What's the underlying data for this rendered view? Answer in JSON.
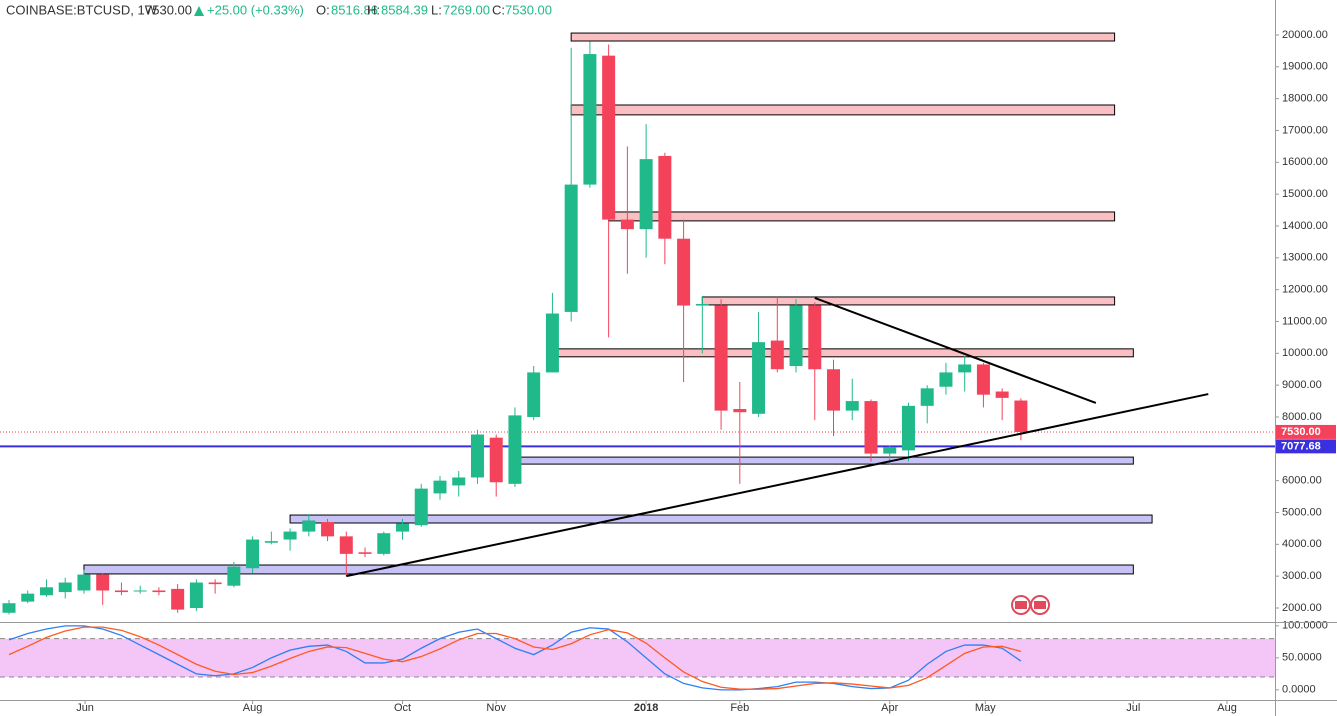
{
  "header": {
    "symbol": "COINBASE:BTCUSD, 1W",
    "price": "7530.00",
    "change": "+25.00 (+0.33%)",
    "o_label": "O:",
    "o": "8516.86",
    "h_label": "H:",
    "h": "8584.39",
    "l_label": "L:",
    "l": "7269.00",
    "c_label": "C:",
    "c": "7530.00"
  },
  "chart_data": [
    {
      "type": "candlestick",
      "categories": [
        null,
        null,
        null,
        null,
        null,
        null,
        null,
        null,
        null,
        null,
        null,
        null,
        null,
        null,
        null,
        null,
        null,
        null,
        null,
        null,
        null,
        null,
        null,
        null,
        null,
        null,
        null,
        null,
        null,
        null,
        null,
        null,
        null,
        null,
        null,
        null,
        null,
        null,
        null,
        null,
        null,
        null,
        null,
        null,
        null,
        null,
        null,
        null,
        null,
        null,
        null,
        null,
        null,
        null,
        null
      ],
      "open": [
        1850,
        2200,
        2400,
        2500,
        2550,
        3050,
        2550,
        2550,
        2550,
        2600,
        2000,
        2800,
        2700,
        3250,
        4050,
        4150,
        4400,
        4700,
        4250,
        3750,
        3700,
        4400,
        4600,
        5600,
        5850,
        6100,
        7350,
        5900,
        8000,
        9400,
        11300,
        15300,
        19350,
        14200,
        13900,
        16200,
        13600,
        11500,
        11500,
        8250,
        8100,
        10400,
        9600,
        11500,
        9500,
        8200,
        8500,
        6850,
        6950,
        8350,
        8950,
        9400,
        9650,
        8800,
        8516.86
      ],
      "high": [
        2250,
        2550,
        2900,
        2950,
        3200,
        3100,
        2800,
        2700,
        2650,
        2750,
        2900,
        2900,
        3450,
        4250,
        4400,
        4500,
        4950,
        4800,
        4400,
        3900,
        4400,
        4800,
        5900,
        6150,
        6300,
        7600,
        7450,
        8300,
        9600,
        11900,
        19600,
        19800,
        19700,
        16500,
        17200,
        16300,
        14200,
        11800,
        11700,
        9100,
        11300,
        11800,
        11700,
        11600,
        9800,
        9200,
        8550,
        7100,
        8450,
        9000,
        9700,
        9900,
        9700,
        8900,
        8584.39
      ],
      "low": [
        1800,
        2150,
        2350,
        2300,
        2450,
        2100,
        2400,
        2450,
        2400,
        1850,
        1900,
        2450,
        2650,
        3100,
        4000,
        3800,
        4250,
        4100,
        3000,
        3600,
        3650,
        4150,
        4550,
        5400,
        5500,
        5900,
        5500,
        5800,
        7900,
        9400,
        11000,
        15200,
        10500,
        12500,
        13000,
        12800,
        9100,
        10000,
        7600,
        5900,
        8000,
        9400,
        9400,
        7900,
        7400,
        7900,
        6600,
        6500,
        6600,
        7800,
        8700,
        8800,
        8300,
        7900,
        7269
      ],
      "close": [
        2150,
        2450,
        2650,
        2800,
        3050,
        2550,
        2500,
        2550,
        2500,
        1950,
        2800,
        2750,
        3300,
        4150,
        4100,
        4400,
        4750,
        4250,
        3700,
        3700,
        4350,
        4650,
        5750,
        6000,
        6100,
        7450,
        5950,
        8050,
        9400,
        11250,
        15300,
        19400,
        14200,
        13900,
        16100,
        13600,
        11500,
        11550,
        8200,
        8150,
        10350,
        9500,
        11500,
        9500,
        8200,
        8500,
        6850,
        7050,
        8350,
        8900,
        9400,
        9650,
        8700,
        8600,
        7530
      ],
      "up_color": "#20b98a",
      "down_color": "#f5425b",
      "xlim": [
        -0.48,
        67.56
      ],
      "xticks": [
        {
          "value": 4.06,
          "label": "Jun"
        },
        {
          "value": 13.0,
          "label": "Aug"
        },
        {
          "value": 21.0,
          "label": "Oct"
        },
        {
          "value": 26.0,
          "label": "Nov"
        },
        {
          "value": 34.0,
          "label": "2018"
        },
        {
          "value": 39.0,
          "label": "Feb"
        },
        {
          "value": 47.0,
          "label": "Apr"
        },
        {
          "value": 52.1,
          "label": "May"
        },
        {
          "value": 60.0,
          "label": "Jul"
        },
        {
          "value": 65.0,
          "label": "Aug"
        }
      ],
      "ylim": [
        1560,
        20470
      ],
      "yticks": [
        {
          "value": 2000,
          "label": "2000.00"
        },
        {
          "value": 3000,
          "label": "3000.00"
        },
        {
          "value": 4000,
          "label": "4000.00"
        },
        {
          "value": 5000,
          "label": "5000.00"
        },
        {
          "value": 6000,
          "label": "6000.00"
        },
        {
          "value": 7000,
          "label": "7000.00"
        },
        {
          "value": 8000,
          "label": "8000.00"
        },
        {
          "value": 9000,
          "label": "9000.00"
        },
        {
          "value": 10000,
          "label": "10000.00"
        },
        {
          "value": 11000,
          "label": "11000.00"
        },
        {
          "value": 12000,
          "label": "12000.00"
        },
        {
          "value": 13000,
          "label": "13000.00"
        },
        {
          "value": 14000,
          "label": "14000.00"
        },
        {
          "value": 15000,
          "label": "15000.00"
        },
        {
          "value": 16000,
          "label": "16000.00"
        },
        {
          "value": 17000,
          "label": "17000.00"
        },
        {
          "value": 18000,
          "label": "18000.00"
        },
        {
          "value": 19000,
          "label": "19000.00"
        },
        {
          "value": 20000,
          "label": "20000.00"
        }
      ],
      "price_labels": [
        {
          "value": 7530,
          "label": "7530.00",
          "color": "#f5425b"
        },
        {
          "value": 7077.68,
          "label": "7077.68",
          "color": "#3a30e0"
        }
      ],
      "zones": [
        {
          "start": 30.0,
          "end": 59.0,
          "low": 19810,
          "high": 20060,
          "color": "#f9bfc3"
        },
        {
          "start": 30.0,
          "end": 59.0,
          "low": 17490,
          "high": 17800,
          "color": "#f9bfc3"
        },
        {
          "start": 32.0,
          "end": 59.0,
          "low": 14160,
          "high": 14440,
          "color": "#f9bfc3"
        },
        {
          "start": 37.0,
          "end": 59.0,
          "low": 11520,
          "high": 11770,
          "color": "#f9bfc3"
        },
        {
          "start": 29.3,
          "end": 60.0,
          "low": 9890,
          "high": 10140,
          "color": "#f9bfc3"
        },
        {
          "start": 27.3,
          "end": 60.0,
          "low": 6520,
          "high": 6740,
          "color": "#c6c2f5"
        },
        {
          "start": 15.0,
          "end": 61.0,
          "low": 4670,
          "high": 4920,
          "color": "#c6c2f5"
        },
        {
          "start": 4.0,
          "end": 60.0,
          "low": 3070,
          "high": 3350,
          "color": "#c6c2f5"
        }
      ],
      "trend_lines": [
        {
          "x": [
            18.0,
            64.0
          ],
          "y": [
            3000,
            8720
          ],
          "color": "#000000"
        },
        {
          "x": [
            43.0,
            58.0
          ],
          "y": [
            11740,
            8440
          ],
          "color": "#000000"
        }
      ]
    },
    {
      "type": "line",
      "series": [
        {
          "color": "#2f7ff0",
          "values": [
            78,
            88,
            95,
            100,
            100,
            95,
            85,
            70,
            55,
            40,
            25,
            22,
            25,
            35,
            50,
            62,
            68,
            70,
            60,
            42,
            42,
            48,
            65,
            80,
            90,
            95,
            80,
            65,
            55,
            70,
            90,
            97,
            95,
            75,
            50,
            25,
            10,
            3,
            0,
            0,
            2,
            5,
            12,
            12,
            10,
            5,
            2,
            3,
            15,
            40,
            60,
            70,
            70,
            65,
            45
          ]
        },
        {
          "color": "#ff5a1f",
          "values": [
            55,
            68,
            82,
            92,
            98,
            98,
            93,
            83,
            70,
            55,
            40,
            29,
            24,
            27,
            37,
            49,
            60,
            67,
            66,
            57,
            48,
            44,
            52,
            64,
            78,
            88,
            88,
            80,
            67,
            63,
            72,
            86,
            94,
            89,
            73,
            50,
            28,
            13,
            4,
            1,
            1,
            2,
            6,
            10,
            11,
            9,
            6,
            3,
            7,
            19,
            38,
            57,
            67,
            68,
            60
          ]
        }
      ],
      "xlim": [
        -0.48,
        67.56
      ],
      "ylim": [
        -19,
        106
      ],
      "yticks": [
        {
          "value": 0,
          "label": "0.0000"
        },
        {
          "value": 50,
          "label": "50.0000"
        },
        {
          "value": 100,
          "label": "100.0000"
        }
      ],
      "band": [
        20,
        80
      ],
      "band_color": "#f3c6f7"
    }
  ]
}
